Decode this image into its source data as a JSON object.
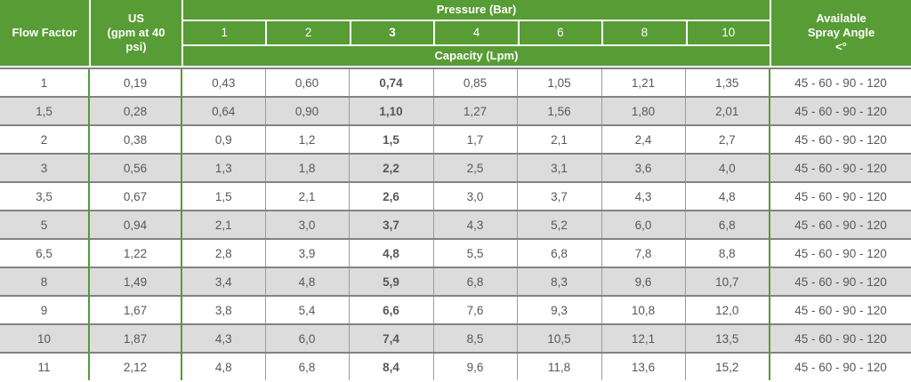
{
  "colors": {
    "header_green": "#579c34",
    "row_alt_gray": "#dcdcdc",
    "data_text": "#58585a",
    "bold_text": "#231f20",
    "grid_gray": "#9c9c9c"
  },
  "table": {
    "header": {
      "flow_factor": "Flow Factor",
      "us": "US\n(gpm at 40\npsi)",
      "pressure_title": "Pressure (Bar)",
      "capacity_title": "Capacity (Lpm)",
      "pressures": [
        "1",
        "2",
        "3",
        "4",
        "6",
        "8",
        "10"
      ],
      "spray_angle": "Available\nSpray Angle\n<°"
    },
    "rows": [
      {
        "flow": "1",
        "us": "0,19",
        "capacities": [
          "0,43",
          "0,60",
          "0,74",
          "0,85",
          "1,05",
          "1,21",
          "1,35"
        ],
        "angle": "45 - 60 - 90 - 120"
      },
      {
        "flow": "1,5",
        "us": "0,28",
        "capacities": [
          "0,64",
          "0,90",
          "1,10",
          "1,27",
          "1,56",
          "1,80",
          "2,01"
        ],
        "angle": "45 - 60 - 90 - 120"
      },
      {
        "flow": "2",
        "us": "0,38",
        "capacities": [
          "0,9",
          "1,2",
          "1,5",
          "1,7",
          "2,1",
          "2,4",
          "2,7"
        ],
        "angle": "45 - 60 - 90 - 120"
      },
      {
        "flow": "3",
        "us": "0,56",
        "capacities": [
          "1,3",
          "1,8",
          "2,2",
          "2,5",
          "3,1",
          "3,6",
          "4,0"
        ],
        "angle": "45 - 60 - 90 - 120"
      },
      {
        "flow": "3,5",
        "us": "0,67",
        "capacities": [
          "1,5",
          "2,1",
          "2,6",
          "3,0",
          "3,7",
          "4,3",
          "4,8"
        ],
        "angle": "45 - 60 - 90 - 120"
      },
      {
        "flow": "5",
        "us": "0,94",
        "capacities": [
          "2,1",
          "3,0",
          "3,7",
          "4,3",
          "5,2",
          "6,0",
          "6,8"
        ],
        "angle": "45 - 60 - 90 - 120"
      },
      {
        "flow": "6,5",
        "us": "1,22",
        "capacities": [
          "2,8",
          "3,9",
          "4,8",
          "5,5",
          "6,8",
          "7,8",
          "8,8"
        ],
        "angle": "45 - 60 - 90 - 120"
      },
      {
        "flow": "8",
        "us": "1,49",
        "capacities": [
          "3,4",
          "4,8",
          "5,9",
          "6,8",
          "8,3",
          "9,6",
          "10,7"
        ],
        "angle": "45 - 60 - 90 - 120"
      },
      {
        "flow": "9",
        "us": "1,67",
        "capacities": [
          "3,8",
          "5,4",
          "6,6",
          "7,6",
          "9,3",
          "10,8",
          "12,0"
        ],
        "angle": "45 - 60 - 90 - 120"
      },
      {
        "flow": "10",
        "us": "1,87",
        "capacities": [
          "4,3",
          "6,0",
          "7,4",
          "8,5",
          "10,5",
          "12,1",
          "13,5"
        ],
        "angle": "45 - 60 - 90 - 120"
      },
      {
        "flow": "11",
        "us": "2,12",
        "capacities": [
          "4,8",
          "6,8",
          "8,4",
          "9,6",
          "11,8",
          "13,6",
          "15,2"
        ],
        "angle": "45 - 60 - 90 - 120"
      }
    ]
  }
}
